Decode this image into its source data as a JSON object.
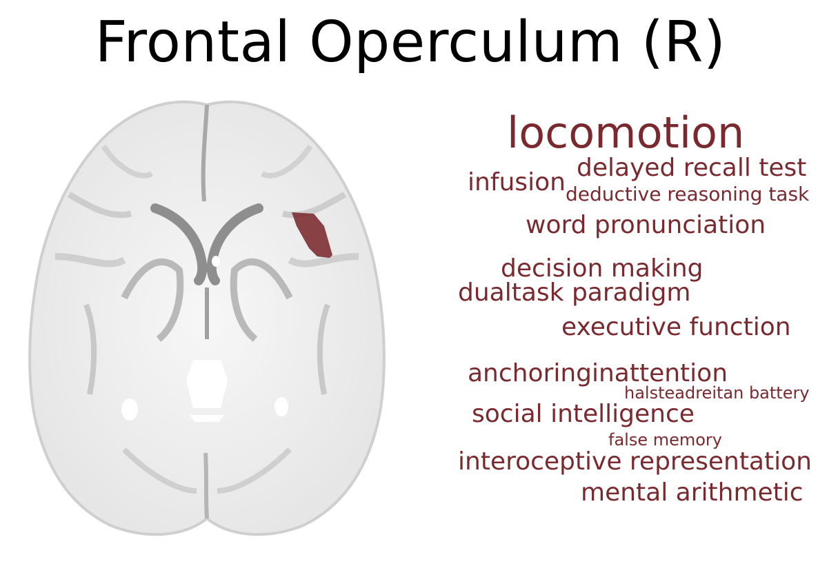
{
  "title": "Frontal Operculum (R)",
  "colors": {
    "region": "#7a2a2e",
    "words": "#7a2a2e",
    "brain_fill": "#f1f1f1",
    "brain_stroke": "#9a9a9a"
  },
  "brain_view": "axial slice, grayscale template with highlighted region",
  "words": [
    {
      "text": "locomotion",
      "size": 62
    },
    {
      "text": "delayed recall test",
      "size": 36
    },
    {
      "text": "infusion",
      "size": 36
    },
    {
      "text": "deductive reasoning task",
      "size": 28
    },
    {
      "text": "word pronunciation",
      "size": 36
    },
    {
      "text": "decision making",
      "size": 36
    },
    {
      "text": "dualtask paradigm",
      "size": 36
    },
    {
      "text": "executive function",
      "size": 36
    },
    {
      "text": "anchoringinattention",
      "size": 36
    },
    {
      "text": "halsteadreitan battery",
      "size": 24
    },
    {
      "text": "social intelligence",
      "size": 36
    },
    {
      "text": "false memory",
      "size": 24
    },
    {
      "text": "interoceptive representation",
      "size": 36
    },
    {
      "text": "mental arithmetic",
      "size": 36
    }
  ]
}
